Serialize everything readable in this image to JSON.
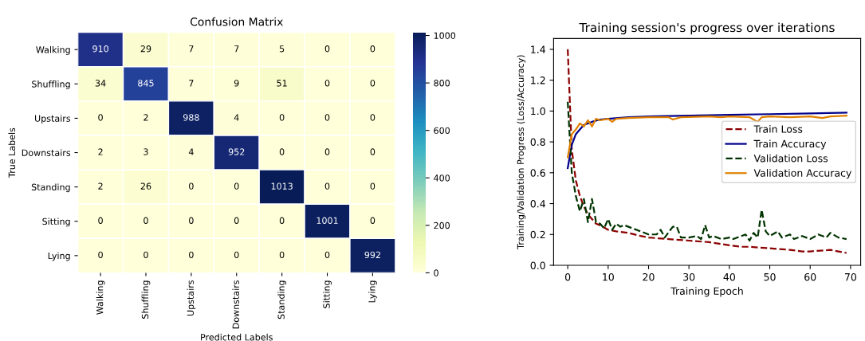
{
  "chart_data": [
    {
      "type": "heatmap",
      "title": "Confusion Matrix",
      "xlabel": "Predicted Labels",
      "ylabel": "True Labels",
      "categories": [
        "Walking",
        "Shuffling",
        "Upstairs",
        "Downstairs",
        "Standing",
        "Sitting",
        "Lying"
      ],
      "y_categories": [
        "Walking",
        "Shuffling",
        "Upstairs",
        "Downstairs",
        "Standing",
        "Sitting",
        "Lying"
      ],
      "cells": [
        [
          910,
          29,
          7,
          7,
          5,
          0,
          0
        ],
        [
          34,
          845,
          7,
          9,
          51,
          0,
          0
        ],
        [
          0,
          2,
          988,
          4,
          0,
          0,
          0
        ],
        [
          2,
          3,
          4,
          952,
          0,
          0,
          0
        ],
        [
          2,
          26,
          0,
          0,
          1013,
          0,
          0
        ],
        [
          0,
          0,
          0,
          0,
          0,
          1001,
          0
        ],
        [
          0,
          0,
          0,
          0,
          0,
          0,
          992
        ]
      ],
      "clim": [
        0,
        1013
      ],
      "cticks": [
        0,
        200,
        400,
        600,
        800,
        1000
      ],
      "data_labels": true
    },
    {
      "type": "line",
      "title": "Training session's progress over iterations",
      "xlabel": "Training Epoch",
      "ylabel": "Training/Validation Progress (Loss/Accuracy)",
      "xlim": [
        -3.5,
        72.5
      ],
      "ylim": [
        0,
        1.47
      ],
      "xticks": [
        0,
        10,
        20,
        30,
        40,
        50,
        60,
        70
      ],
      "yticks": [
        {
          "value": 0,
          "label": "0.0"
        },
        {
          "value": 0.2,
          "label": "0.2"
        },
        {
          "value": 0.4,
          "label": "0.4"
        },
        {
          "value": 0.6,
          "label": "0.6"
        },
        {
          "value": 0.8,
          "label": "0.8"
        },
        {
          "value": 1.0,
          "label": "1.0"
        },
        {
          "value": 1.2,
          "label": "1.2"
        },
        {
          "value": 1.4,
          "label": "1.4"
        }
      ],
      "legend": "center right",
      "grid": false,
      "series": [
        {
          "name": "Train Loss",
          "color": "#8b0000",
          "line_style": "dashed",
          "x": [
            0,
            1,
            2,
            3,
            4,
            5,
            6,
            7,
            8,
            10,
            12,
            15,
            18,
            20,
            25,
            30,
            35,
            40,
            43,
            45,
            50,
            55,
            58,
            60,
            65,
            67,
            69
          ],
          "values": [
            1.4,
            0.75,
            0.55,
            0.45,
            0.38,
            0.33,
            0.3,
            0.27,
            0.26,
            0.23,
            0.22,
            0.21,
            0.19,
            0.18,
            0.17,
            0.16,
            0.15,
            0.13,
            0.12,
            0.12,
            0.11,
            0.1,
            0.09,
            0.09,
            0.1,
            0.09,
            0.08
          ]
        },
        {
          "name": "Train Accuracy",
          "color": "#00008b",
          "line_style": "solid",
          "x": [
            0,
            1,
            2,
            3,
            4,
            5,
            6,
            8,
            10,
            15,
            20,
            30,
            40,
            50,
            60,
            69
          ],
          "values": [
            0.63,
            0.78,
            0.85,
            0.88,
            0.91,
            0.92,
            0.93,
            0.945,
            0.95,
            0.96,
            0.965,
            0.97,
            0.975,
            0.98,
            0.985,
            0.99
          ]
        },
        {
          "name": "Validation Loss",
          "color": "#003300",
          "line_style": "dashed",
          "x": [
            0,
            1,
            2,
            3,
            4,
            5,
            6,
            7,
            8,
            9,
            10,
            11,
            12,
            13,
            14,
            16,
            18,
            20,
            22,
            23,
            24,
            26,
            27,
            28,
            30,
            32,
            33,
            34,
            35,
            36,
            38,
            40,
            41,
            43,
            44,
            45,
            46,
            47,
            48,
            49,
            50,
            52,
            53,
            55,
            56,
            58,
            60,
            62,
            64,
            65,
            67,
            69
          ],
          "values": [
            1.06,
            0.6,
            0.45,
            0.35,
            0.43,
            0.28,
            0.43,
            0.28,
            0.27,
            0.24,
            0.3,
            0.23,
            0.27,
            0.25,
            0.26,
            0.24,
            0.22,
            0.2,
            0.2,
            0.23,
            0.18,
            0.25,
            0.25,
            0.18,
            0.18,
            0.19,
            0.17,
            0.26,
            0.18,
            0.19,
            0.17,
            0.18,
            0.17,
            0.19,
            0.2,
            0.16,
            0.21,
            0.18,
            0.36,
            0.22,
            0.19,
            0.22,
            0.18,
            0.2,
            0.17,
            0.19,
            0.17,
            0.2,
            0.18,
            0.21,
            0.18,
            0.17
          ]
        },
        {
          "name": "Validation Accuracy",
          "color": "#e08000",
          "line_style": "solid",
          "x": [
            0,
            1,
            2,
            3,
            4,
            5,
            6,
            7,
            8,
            10,
            11,
            12,
            15,
            20,
            25,
            26,
            28,
            35,
            38,
            40,
            45,
            47,
            48,
            50,
            55,
            60,
            63,
            65,
            69
          ],
          "values": [
            0.7,
            0.85,
            0.88,
            0.92,
            0.9,
            0.94,
            0.9,
            0.95,
            0.94,
            0.95,
            0.93,
            0.95,
            0.955,
            0.96,
            0.96,
            0.945,
            0.96,
            0.965,
            0.96,
            0.965,
            0.96,
            0.93,
            0.96,
            0.965,
            0.96,
            0.965,
            0.955,
            0.965,
            0.97
          ]
        }
      ]
    }
  ]
}
